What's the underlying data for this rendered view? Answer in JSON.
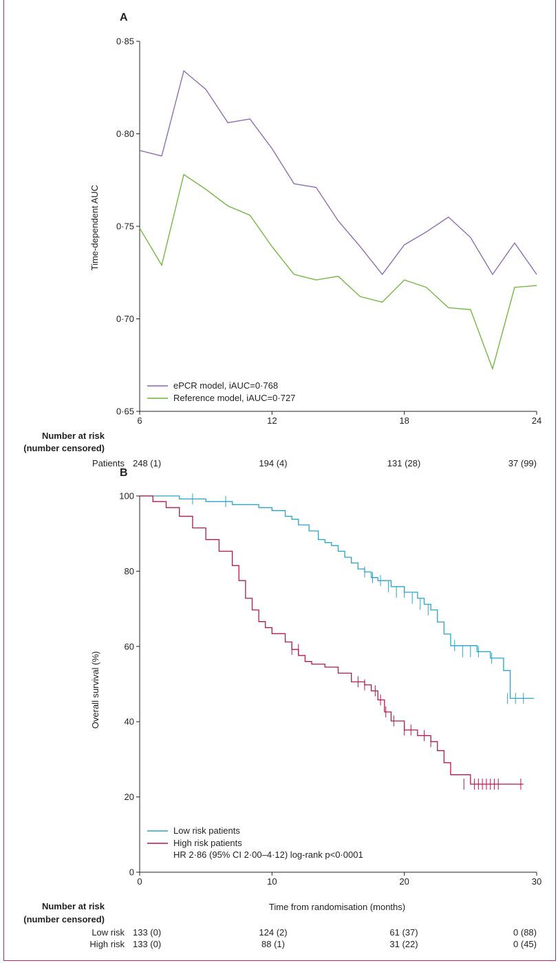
{
  "panel_a": {
    "letter": "A",
    "risk_header_line1": "Number at risk",
    "risk_header_line2": "(number censored)",
    "risk_rows": [
      {
        "label": "Patients",
        "values": [
          "248 (1)",
          "194 (4)",
          "131 (28)",
          "37 (99)"
        ]
      }
    ]
  },
  "panel_b": {
    "letter": "B",
    "risk_header_line1": "Number at risk",
    "risk_header_line2": "(number censored)",
    "risk_rows": [
      {
        "label": "Low risk",
        "values": [
          "133 (0)",
          "124 (2)",
          "61 (37)",
          "0 (88)"
        ]
      },
      {
        "label": "High risk",
        "values": [
          "133 (0)",
          "88 (1)",
          "31 (22)",
          "0 (45)"
        ]
      }
    ],
    "annotation": "HR 2·86 (95% CI 2·00–4·12) log-rank p<0·0001"
  },
  "chart_data": [
    {
      "type": "line",
      "title": "",
      "xlabel": "",
      "ylabel": "Time-dependent AUC",
      "xlim": [
        6,
        24
      ],
      "ylim": [
        0.65,
        0.85
      ],
      "xticks": [
        6,
        12,
        18,
        24
      ],
      "xtick_labels": [
        "6",
        "12",
        "18",
        "24"
      ],
      "yticks": [
        0.65,
        0.7,
        0.75,
        0.8,
        0.85
      ],
      "ytick_labels": [
        "0·65",
        "0·70",
        "0·75",
        "0·80",
        "0·85"
      ],
      "legend_position": "bottom-left",
      "grid": false,
      "series": [
        {
          "name": "ePCR model, iAUC=0·768",
          "color": "#8a63b2",
          "x": [
            6,
            7,
            8,
            9,
            10,
            11,
            12,
            13,
            14,
            15,
            16,
            17,
            18,
            19,
            20,
            21,
            22,
            23,
            24
          ],
          "y": [
            0.791,
            0.788,
            0.834,
            0.824,
            0.806,
            0.808,
            0.792,
            0.773,
            0.771,
            0.753,
            0.739,
            0.724,
            0.74,
            0.747,
            0.755,
            0.744,
            0.724,
            0.741,
            0.724
          ]
        },
        {
          "name": "Reference model, iAUC=0·727",
          "color": "#6ab536",
          "x": [
            6,
            7,
            8,
            9,
            10,
            11,
            12,
            13,
            14,
            15,
            16,
            17,
            18,
            19,
            20,
            21,
            22,
            23,
            24
          ],
          "y": [
            0.749,
            0.729,
            0.778,
            0.77,
            0.761,
            0.756,
            0.739,
            0.724,
            0.721,
            0.723,
            0.712,
            0.709,
            0.721,
            0.717,
            0.706,
            0.705,
            0.673,
            0.717,
            0.718
          ]
        }
      ]
    },
    {
      "type": "line",
      "title": "",
      "xlabel": "Time from randomisation (months)",
      "ylabel": "Overall survival (%)",
      "xlim": [
        0,
        30
      ],
      "ylim": [
        0,
        100
      ],
      "xticks": [
        0,
        10,
        20,
        30
      ],
      "xtick_labels": [
        "0",
        "10",
        "20",
        "30"
      ],
      "yticks": [
        0,
        20,
        40,
        60,
        80,
        100
      ],
      "ytick_labels": [
        "0",
        "20",
        "40",
        "60",
        "80",
        "100"
      ],
      "legend_position": "bottom-left",
      "grid": false,
      "step": true,
      "series": [
        {
          "name": "Low risk patients",
          "color": "#27a4c8",
          "x": [
            0,
            3,
            4,
            5,
            6.5,
            7,
            7.5,
            9,
            10,
            11,
            11.5,
            12,
            12.8,
            13.5,
            14,
            14.5,
            15,
            15.5,
            16,
            16.5,
            17,
            17.5,
            18,
            19,
            20,
            21,
            21.5,
            22,
            22.5,
            23,
            23.5,
            25.5,
            26.5,
            27.5,
            28,
            29.8
          ],
          "y": [
            100,
            99.2,
            99.2,
            98.5,
            98.5,
            97.7,
            97.7,
            96.9,
            96.1,
            94.6,
            93.8,
            92.3,
            90.7,
            88.4,
            87.6,
            86.8,
            85.3,
            83.7,
            82.2,
            80.6,
            79.8,
            78.3,
            77.5,
            75.9,
            74.4,
            72.8,
            71.2,
            69.7,
            66.5,
            63.3,
            60.2,
            58.6,
            56.9,
            53.6,
            46.2,
            46.2
          ],
          "censor_x": [
            4,
            6.5,
            17,
            17.6,
            18.2,
            18.8,
            19.4,
            20,
            20.6,
            21.2,
            21.8,
            23.8,
            24.4,
            25,
            25.6,
            26.6,
            27.8,
            28.4,
            29
          ],
          "censor_y": [
            99.2,
            98.5,
            79.8,
            78.3,
            77.5,
            75.9,
            74.4,
            74.4,
            72.8,
            71.2,
            69.7,
            60.2,
            58.6,
            58.6,
            58.6,
            56.9,
            46.2,
            46.2,
            46.2
          ]
        },
        {
          "name": "High risk patients",
          "color": "#b0174e",
          "x": [
            0,
            1,
            2,
            3,
            4,
            5,
            6,
            7,
            7.5,
            8,
            8.5,
            9,
            9.5,
            10,
            11,
            11.5,
            12,
            12.5,
            13,
            14,
            15,
            16,
            17,
            17.5,
            18,
            18.5,
            19,
            20,
            21,
            22,
            22.5,
            23,
            23.5,
            25,
            29
          ],
          "y": [
            100,
            98.5,
            96.9,
            94.6,
            91.5,
            88.4,
            85.3,
            81.5,
            77.5,
            72.8,
            69.7,
            66.6,
            65,
            63.4,
            61.2,
            59.2,
            57.6,
            56,
            55.3,
            54.5,
            52.9,
            50.6,
            49.8,
            48.2,
            45.8,
            42.6,
            40.2,
            37.8,
            36.3,
            34.7,
            32.3,
            29.1,
            25.9,
            23.4,
            23.4
          ],
          "censor_x": [
            11.5,
            12,
            16.5,
            17,
            17.8,
            18.2,
            18.6,
            19.2,
            20,
            20.5,
            21.5,
            22,
            24.5,
            25.3,
            25.6,
            25.9,
            26.2,
            26.5,
            26.8,
            27.1,
            28.8
          ],
          "censor_y": [
            59.2,
            59.2,
            50.6,
            49.8,
            48.2,
            45.8,
            42.6,
            40.2,
            37.8,
            37.8,
            36.3,
            34.7,
            23.4,
            23.4,
            23.4,
            23.4,
            23.4,
            23.4,
            23.4,
            23.4,
            23.4
          ]
        }
      ]
    }
  ]
}
